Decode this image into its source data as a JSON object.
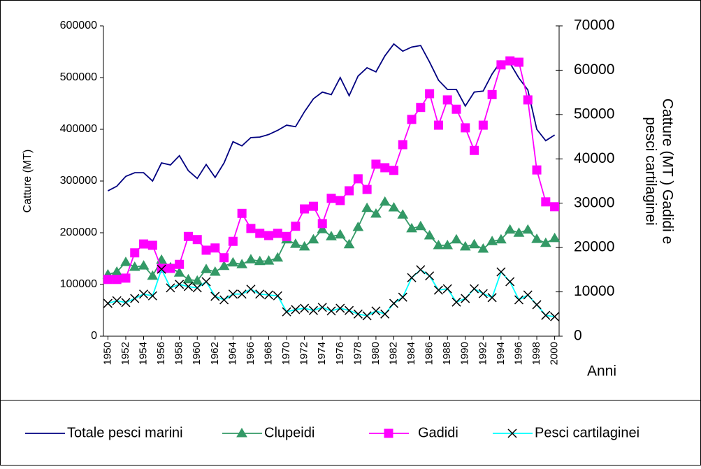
{
  "chart_data": {
    "type": "line",
    "ylabel": "Catture (MT)",
    "y2label": [
      "Catture (MT ) Gadidi e",
      "pesci cartilaginei"
    ],
    "xlabel": "Anni",
    "x": [
      1950,
      1951,
      1952,
      1953,
      1954,
      1955,
      1956,
      1957,
      1958,
      1959,
      1960,
      1961,
      1962,
      1963,
      1964,
      1965,
      1966,
      1967,
      1968,
      1969,
      1970,
      1971,
      1972,
      1973,
      1974,
      1975,
      1976,
      1977,
      1978,
      1979,
      1980,
      1981,
      1982,
      1983,
      1984,
      1985,
      1986,
      1987,
      1988,
      1989,
      1990,
      1991,
      1992,
      1993,
      1994,
      1995,
      1996,
      1997,
      1998,
      1999,
      2000
    ],
    "xlim": [
      1949.5,
      2000.5
    ],
    "xticks": [
      1950,
      1952,
      1954,
      1956,
      1958,
      1960,
      1962,
      1964,
      1966,
      1968,
      1970,
      1972,
      1974,
      1976,
      1978,
      1980,
      1982,
      1984,
      1986,
      1988,
      1990,
      1992,
      1994,
      1996,
      1998,
      2000
    ],
    "ylim": [
      0,
      600000
    ],
    "yticks": [
      0,
      100000,
      200000,
      300000,
      400000,
      500000,
      600000
    ],
    "y2lim": [
      0,
      70000
    ],
    "y2ticks": [
      0,
      10000,
      20000,
      30000,
      40000,
      50000,
      60000,
      70000
    ],
    "grid": false,
    "legend": "bottom",
    "series": [
      {
        "name": "Totale pesci marini",
        "color": "#000080",
        "marker": "none",
        "marker_color": "#000080",
        "values": [
          281000,
          290000,
          309000,
          316000,
          316000,
          300000,
          335000,
          331000,
          349000,
          320000,
          305000,
          332000,
          307000,
          335000,
          376000,
          368000,
          384000,
          385000,
          390000,
          398000,
          408000,
          405000,
          434000,
          459000,
          472000,
          467000,
          500000,
          465000,
          503000,
          519000,
          511000,
          542000,
          565000,
          551000,
          559000,
          562000,
          530000,
          495000,
          477000,
          477000,
          445000,
          472000,
          474000,
          507000,
          532000,
          528000,
          499000,
          476000,
          400000,
          378000,
          389000
        ]
      },
      {
        "name": "Clupeidi",
        "color": "#339966",
        "marker": "triangle",
        "marker_color": "#339966",
        "axis": "y2",
        "values": [
          13900,
          14500,
          16700,
          15600,
          15900,
          13600,
          17200,
          15500,
          14300,
          12800,
          12500,
          15100,
          14500,
          15800,
          16600,
          16200,
          17300,
          16900,
          17000,
          17700,
          21800,
          20800,
          20200,
          21800,
          24100,
          22500,
          22900,
          20700,
          24600,
          28900,
          27600,
          30300,
          29000,
          27400,
          24300,
          24800,
          22700,
          20500,
          20500,
          21800,
          20200,
          20700,
          19700,
          21400,
          21800,
          24000,
          23300,
          24000,
          21900,
          21000,
          22100
        ]
      },
      {
        "name": "Gadidi",
        "color": "#ff00ff",
        "marker": "square",
        "marker_color": "#ff00ff",
        "axis": "y2",
        "values": [
          12800,
          12800,
          13100,
          18800,
          20800,
          20500,
          15300,
          15300,
          16200,
          22500,
          21800,
          19400,
          19900,
          17700,
          21400,
          27700,
          24300,
          23200,
          22700,
          23200,
          22500,
          24800,
          28700,
          29300,
          25400,
          31100,
          30600,
          32800,
          35500,
          33100,
          38800,
          38000,
          37400,
          43200,
          48900,
          51600,
          54700,
          47600,
          53300,
          51200,
          47000,
          41900,
          47600,
          54500,
          61200,
          62100,
          61800,
          53300,
          37500,
          30300,
          29200
        ]
      },
      {
        "name": "Pesci cartilaginei",
        "color": "#00ffff",
        "marker": "x",
        "marker_color": "#000000",
        "axis": "y2",
        "values": [
          7400,
          8000,
          7600,
          8500,
          9500,
          9100,
          15100,
          10900,
          11700,
          11200,
          10900,
          12300,
          9000,
          8200,
          9500,
          9500,
          10600,
          9500,
          9300,
          9100,
          5500,
          6000,
          6300,
          5800,
          6500,
          5700,
          6300,
          5800,
          5000,
          4600,
          5700,
          5000,
          7400,
          8800,
          13200,
          15000,
          13600,
          10400,
          10700,
          7700,
          8500,
          10700,
          9600,
          8700,
          14500,
          12300,
          8200,
          9300,
          7100,
          4700,
          4400
        ]
      }
    ]
  }
}
